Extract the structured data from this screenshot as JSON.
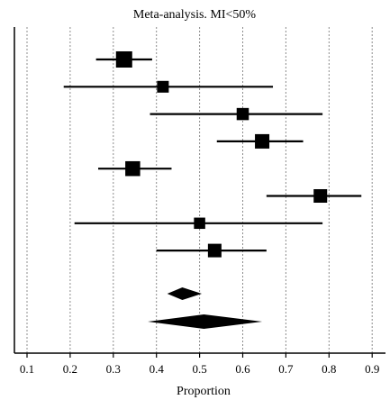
{
  "chart_data": {
    "type": "scatter",
    "title": "Meta-analysis. MI<50%",
    "xlabel": "Proportion",
    "ylabel": "",
    "xlim": [
      0.1,
      0.9
    ],
    "xticks": [
      0.1,
      0.2,
      0.3,
      0.4,
      0.5,
      0.6,
      0.7,
      0.8,
      0.9
    ],
    "xtick_labels": [
      "0.1",
      "0.2",
      "0.3",
      "0.4",
      "0.5",
      "0.6",
      "0.7",
      "0.8",
      "0.9"
    ],
    "grid": "vertical-dashed",
    "studies": [
      {
        "estimate": 0.325,
        "ci": [
          0.26,
          0.39
        ],
        "marker_weight": 1.0
      },
      {
        "estimate": 0.415,
        "ci": [
          0.185,
          0.67
        ],
        "marker_weight": 0.5
      },
      {
        "estimate": 0.6,
        "ci": [
          0.385,
          0.785
        ],
        "marker_weight": 0.55
      },
      {
        "estimate": 0.645,
        "ci": [
          0.54,
          0.74
        ],
        "marker_weight": 0.8
      },
      {
        "estimate": 0.345,
        "ci": [
          0.265,
          0.435
        ],
        "marker_weight": 0.85
      },
      {
        "estimate": 0.78,
        "ci": [
          0.655,
          0.875
        ],
        "marker_weight": 0.7
      },
      {
        "estimate": 0.5,
        "ci": [
          0.21,
          0.785
        ],
        "marker_weight": 0.45
      },
      {
        "estimate": 0.535,
        "ci": [
          0.4,
          0.655
        ],
        "marker_weight": 0.7
      }
    ],
    "pooled": [
      {
        "estimate": 0.46,
        "ci": [
          0.425,
          0.505
        ]
      },
      {
        "estimate": 0.51,
        "ci": [
          0.38,
          0.645
        ]
      }
    ]
  }
}
